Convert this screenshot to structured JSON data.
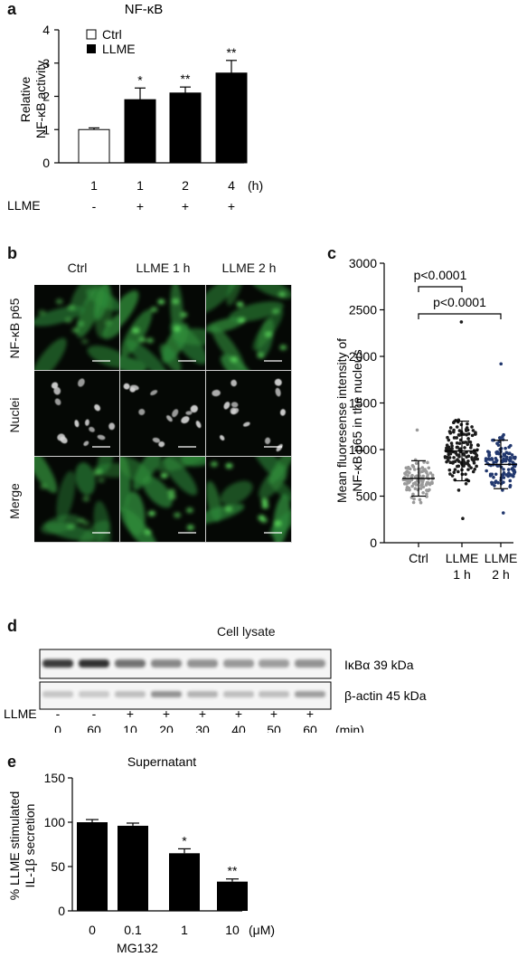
{
  "panel_a": {
    "letter": "a",
    "legend": [
      "Ctrl",
      "LLME"
    ]
  },
  "panel_b": {
    "letter": "b",
    "columns": [
      "Ctrl",
      "LLME 1 h",
      "LLME 2 h"
    ],
    "rows": [
      "NF-κB p65",
      "Nuclei",
      "Merge"
    ]
  },
  "panel_c": {
    "letter": "c",
    "comparisons": [
      "p<0.0001",
      "p<0.0001"
    ],
    "categories": [
      [
        "Ctrl"
      ],
      [
        "LLME",
        "1 h"
      ],
      [
        "LLME",
        "2 h"
      ]
    ]
  },
  "panel_d": {
    "letter": "d",
    "title": "Cell lysate",
    "bands": [
      "IκBα 39 kDa",
      "β-actin 45 kDa"
    ],
    "times": [
      "0",
      "60",
      "10",
      "20",
      "30",
      "40",
      "50",
      "60"
    ],
    "time_unit": "(min)",
    "treatment_label": "LLME",
    "treatment": [
      "-",
      "-",
      "+",
      "+",
      "+",
      "+",
      "+",
      "+"
    ]
  },
  "panel_e": {
    "letter": "e"
  },
  "chart_data": [
    {
      "type": "bar",
      "panel": "a",
      "title": "NF-κB",
      "ylabel": "Relative NF-κB activity",
      "ylabel_lines": [
        "Relative",
        "NF-κB activity"
      ],
      "ylim": [
        0,
        4
      ],
      "yticks": [
        0,
        1,
        2,
        3,
        4
      ],
      "categories": [
        "1",
        "1",
        "2",
        "4"
      ],
      "x_unit": "(h)",
      "treatment_label": "LLME",
      "treatment": [
        "-",
        "+",
        "+",
        "+"
      ],
      "series": [
        {
          "name": "Ctrl",
          "color": "#ffffff"
        },
        {
          "name": "LLME",
          "color": "#000000"
        }
      ],
      "bar_series": [
        "Ctrl",
        "LLME",
        "LLME",
        "LLME"
      ],
      "values": [
        1.0,
        1.9,
        2.1,
        2.7
      ],
      "errors": [
        0.05,
        0.35,
        0.18,
        0.38
      ],
      "significance": [
        "",
        "*",
        "**",
        "**"
      ]
    },
    {
      "type": "scatter",
      "panel": "c",
      "title": "",
      "ylabel": "Mean fluoresense intensity of NF-κB p65 in the nucleus",
      "ylabel_lines": [
        "Mean fluoresense intensity of",
        "NF-κB p65 in the nucleus"
      ],
      "ylim": [
        0,
        3000
      ],
      "yticks": [
        0,
        500,
        1000,
        1500,
        2000,
        2500,
        3000
      ],
      "categories": [
        "Ctrl",
        "LLME 1 h",
        "LLME 2 h"
      ],
      "colors": [
        "#9a9a9a",
        "#1c1c1c",
        "#22386e"
      ],
      "mean": [
        690,
        985,
        840
      ],
      "sd": [
        190,
        320,
        260
      ],
      "range": [
        [
          430,
          1210
        ],
        [
          260,
          2370
        ],
        [
          320,
          1920
        ]
      ],
      "n_points": [
        100,
        150,
        120
      ]
    },
    {
      "type": "bar",
      "panel": "e",
      "title": "Supernatant",
      "ylabel": "% LLME stimulated IL-1β secretion",
      "ylabel_lines": [
        "% LLME stimulated",
        "IL-1β secretion"
      ],
      "xlabel": "MG132",
      "x_unit": "(μM)",
      "ylim": [
        0,
        150
      ],
      "yticks": [
        0,
        50,
        100,
        150
      ],
      "categories": [
        "0",
        "0.1",
        "1",
        "10"
      ],
      "values": [
        100,
        96,
        65,
        33
      ],
      "errors": [
        3,
        3,
        5,
        3
      ],
      "significance": [
        "",
        "",
        "*",
        "**"
      ]
    }
  ]
}
